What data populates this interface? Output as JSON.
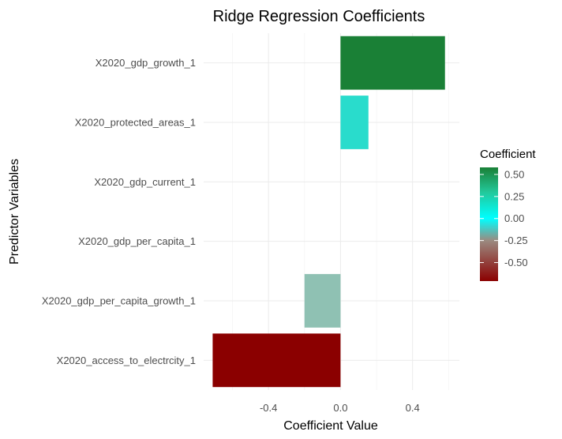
{
  "chart_data": {
    "type": "bar",
    "orientation": "horizontal",
    "title": "Ridge Regression Coefficients",
    "xlabel": "Coefficient Value",
    "ylabel": "Predictor Variables",
    "categories": [
      "X2020_gdp_growth_1",
      "X2020_protected_areas_1",
      "X2020_gdp_current_1",
      "X2020_gdp_per_capita_1",
      "X2020_gdp_per_capita_growth_1",
      "X2020_access_to_electrcity_1"
    ],
    "values": [
      0.58,
      0.155,
      0.0,
      0.0,
      -0.2,
      -0.71
    ],
    "bar_colors": [
      "#1a8036",
      "#29dccc",
      "#29dccc",
      "#29dccc",
      "#8fc1b3",
      "#8b0000"
    ],
    "xlim": [
      -0.76,
      0.66
    ],
    "x_ticks": [
      -0.4,
      0.0,
      0.4
    ],
    "x_tick_labels": [
      "-0.4",
      "0.0",
      "0.4"
    ],
    "grid": true,
    "legend": {
      "title": "Coefficient",
      "position": "right",
      "type": "colorbar",
      "ticks": [
        0.5,
        0.25,
        0.0,
        -0.25,
        -0.5
      ],
      "tick_labels": [
        "0.50",
        "0.25",
        "0.00",
        "-0.25",
        "-0.50"
      ],
      "range": [
        -0.71,
        0.58
      ],
      "gradient_stops": [
        {
          "value": -0.71,
          "color": "#8b0000"
        },
        {
          "value": -0.25,
          "color": "#9b8a80"
        },
        {
          "value": 0.0,
          "color": "#00ffff"
        },
        {
          "value": 0.3,
          "color": "#22c89a"
        },
        {
          "value": 0.58,
          "color": "#1a8036"
        }
      ]
    }
  }
}
